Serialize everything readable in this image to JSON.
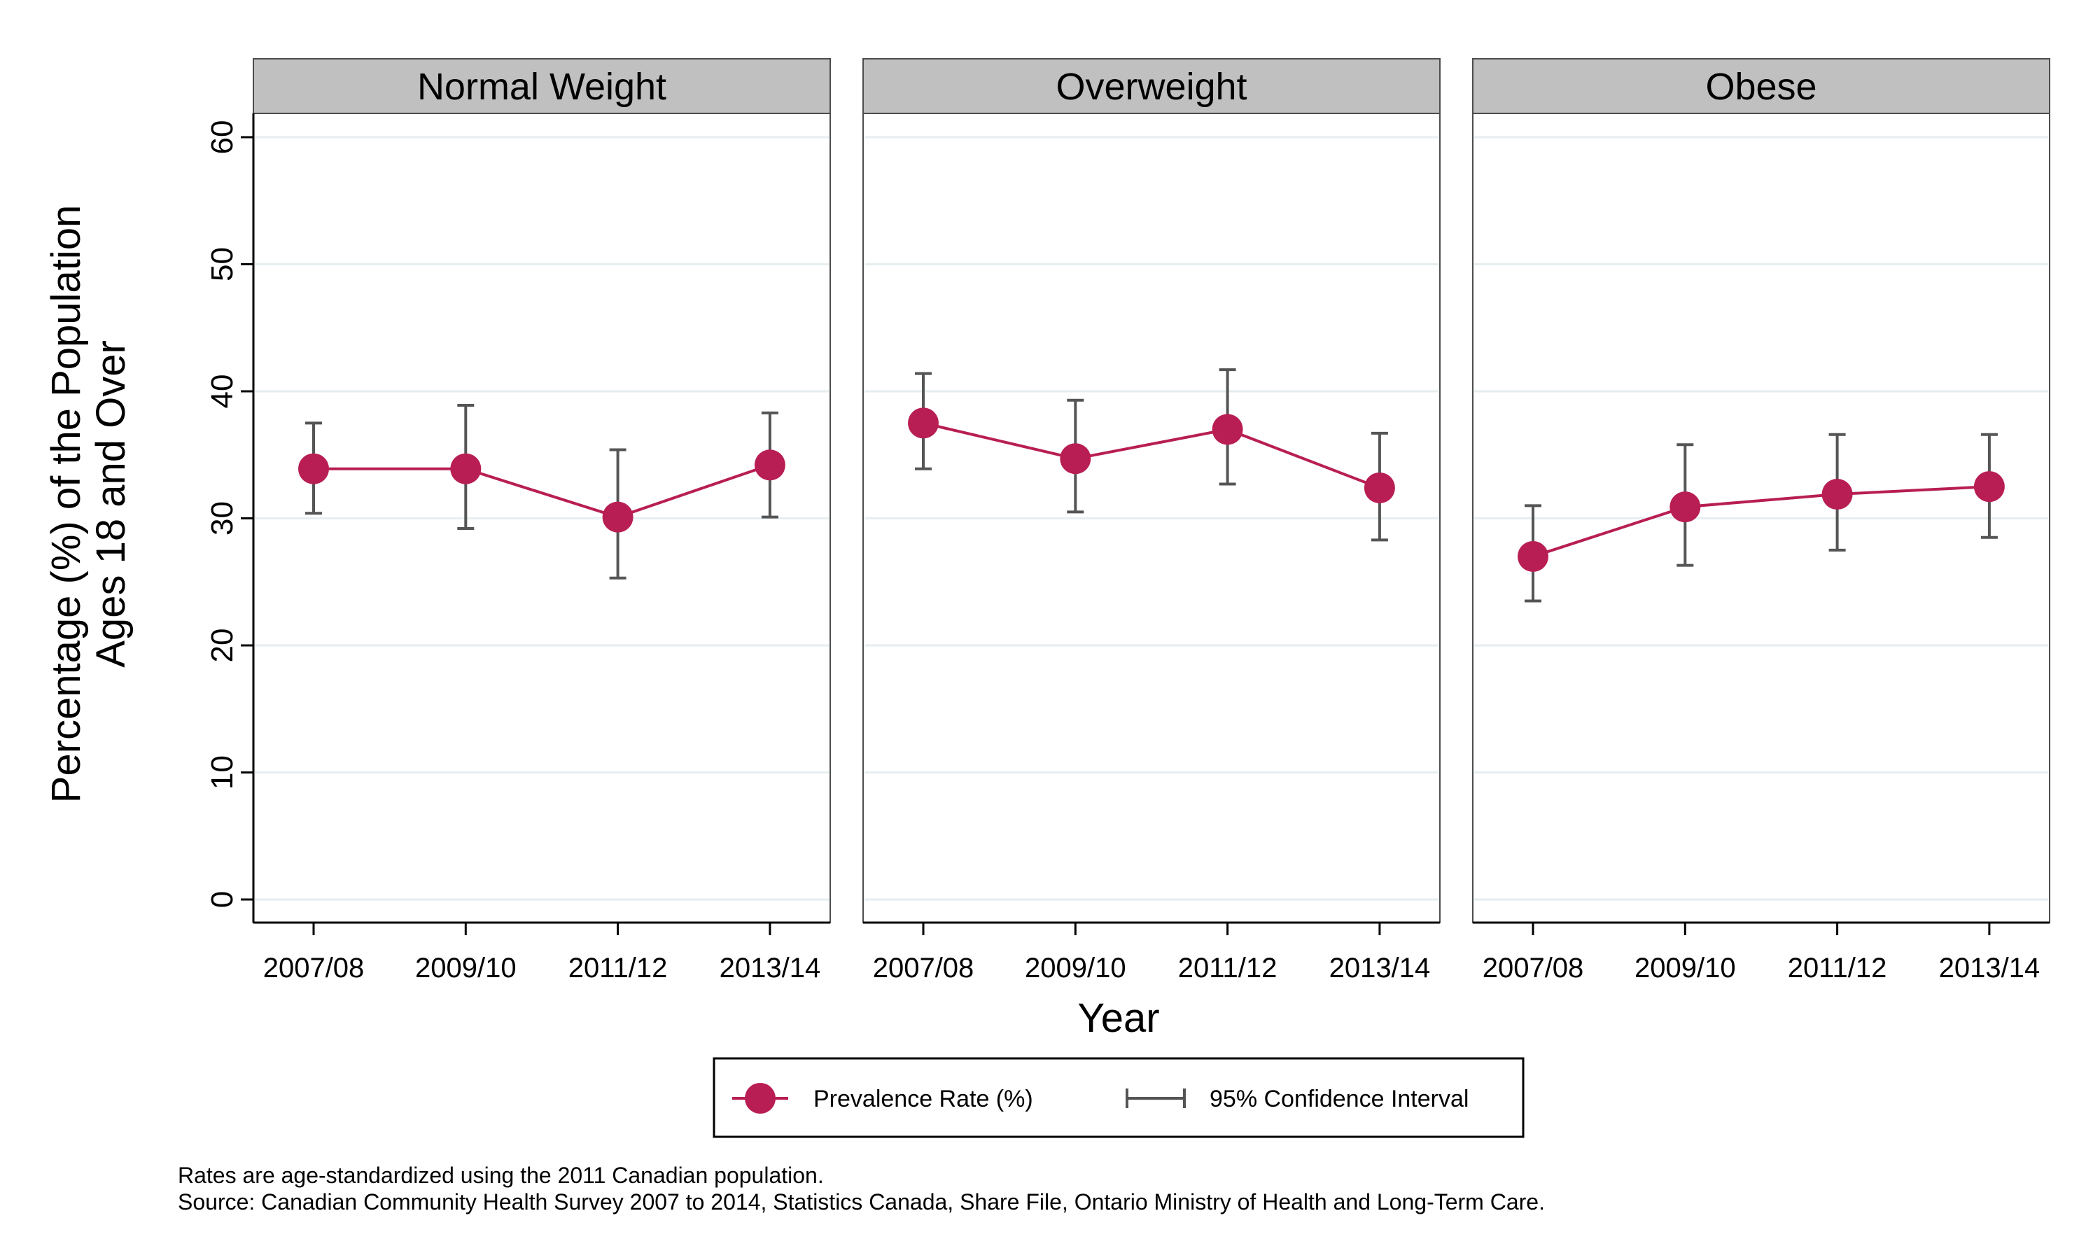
{
  "chart_data": {
    "type": "line",
    "categories": [
      "2007/08",
      "2009/10",
      "2011/12",
      "2013/14"
    ],
    "ylim": [
      0,
      60
    ],
    "yticks": [
      0,
      10,
      20,
      30,
      40,
      50,
      60
    ],
    "ylabel_line1": "Percentage (%) of the Population",
    "ylabel_line2": "Ages 18 and Over",
    "xlabel": "Year",
    "grid": true,
    "legend_position": "bottom",
    "legend": {
      "point_label": "Prevalence Rate (%)",
      "ci_label": "95% Confidence Interval"
    },
    "panels": [
      {
        "title": "Normal Weight",
        "values": [
          33.9,
          33.9,
          30.1,
          34.2
        ],
        "ci_low": [
          30.4,
          29.2,
          25.3,
          30.1
        ],
        "ci_high": [
          37.5,
          38.9,
          35.4,
          38.3
        ]
      },
      {
        "title": "Overweight",
        "values": [
          37.5,
          34.7,
          37.0,
          32.4
        ],
        "ci_low": [
          33.9,
          30.5,
          32.7,
          28.3
        ],
        "ci_high": [
          41.4,
          39.3,
          41.7,
          36.7
        ]
      },
      {
        "title": "Obese",
        "values": [
          27.0,
          30.9,
          31.9,
          32.5
        ],
        "ci_low": [
          23.5,
          26.3,
          27.5,
          28.5
        ],
        "ci_high": [
          31.0,
          35.8,
          36.6,
          36.6
        ]
      }
    ],
    "colors": {
      "series": "#b81e53",
      "ci": "#555555",
      "strip": "#c0c0c0",
      "grid": "#e6eef0"
    },
    "notes": [
      "Rates are age-standardized using the 2011 Canadian population.",
      "Source: Canadian Community Health Survey 2007 to 2014, Statistics Canada, Share File, Ontario Ministry of Health and Long-Term Care."
    ]
  }
}
